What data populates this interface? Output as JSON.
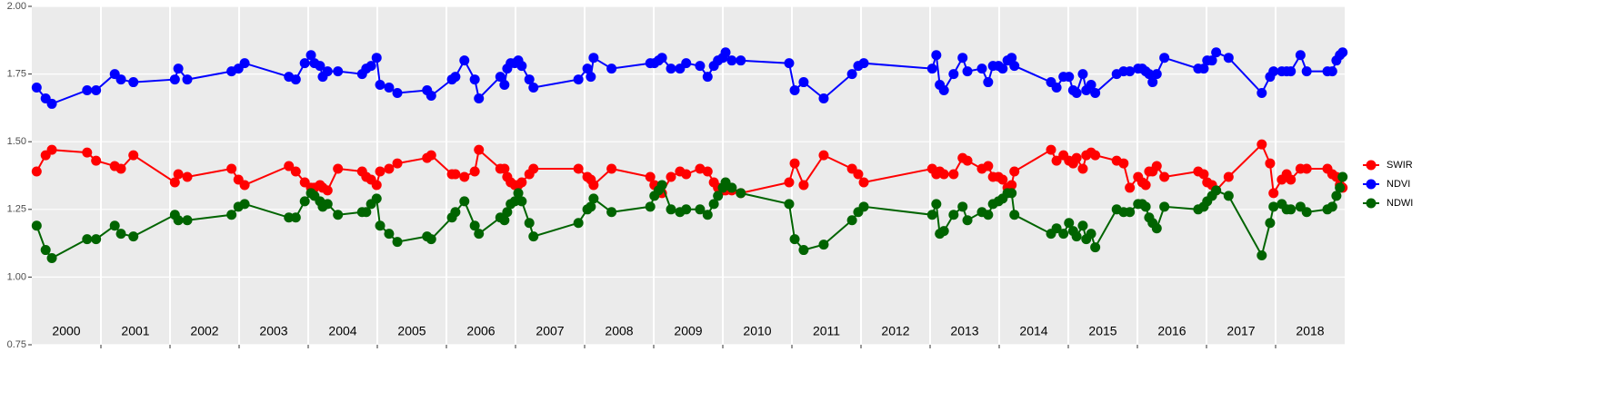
{
  "chart_data": {
    "type": "line",
    "x": [
      2000.07,
      2000.2,
      2000.29,
      2000.8,
      2000.93,
      2001.2,
      2001.29,
      2001.47,
      2002.07,
      2002.12,
      2002.25,
      2002.89,
      2002.99,
      2003.08,
      2003.72,
      2003.82,
      2003.95,
      2004.04,
      2004.09,
      2004.17,
      2004.21,
      2004.28,
      2004.43,
      2004.78,
      2004.84,
      2004.91,
      2004.99,
      2005.04,
      2005.17,
      2005.29,
      2005.72,
      2005.78,
      2006.08,
      2006.13,
      2006.26,
      2006.41,
      2006.47,
      2006.78,
      2006.84,
      2006.88,
      2006.93,
      2006.99,
      2007.04,
      2007.09,
      2007.2,
      2007.26,
      2007.91,
      2008.04,
      2008.09,
      2008.13,
      2008.39,
      2008.95,
      2009.01,
      2009.07,
      2009.12,
      2009.25,
      2009.38,
      2009.47,
      2009.67,
      2009.78,
      2009.87,
      2009.93,
      2010.0,
      2010.04,
      2010.13,
      2010.26,
      2010.96,
      2011.04,
      2011.17,
      2011.46,
      2011.87,
      2011.96,
      2012.04,
      2013.03,
      2013.09,
      2013.14,
      2013.2,
      2013.34,
      2013.47,
      2013.54,
      2013.75,
      2013.84,
      2013.91,
      2013.99,
      2014.05,
      2014.12,
      2014.18,
      2014.22,
      2014.75,
      2014.83,
      2014.93,
      2015.01,
      2015.07,
      2015.12,
      2015.21,
      2015.26,
      2015.33,
      2015.39,
      2015.7,
      2015.8,
      2015.89,
      2016.01,
      2016.07,
      2016.12,
      2016.17,
      2016.22,
      2016.28,
      2016.39,
      2016.88,
      2016.96,
      2017.01,
      2017.08,
      2017.14,
      2017.32,
      2017.8,
      2017.92,
      2017.97,
      2018.09,
      2018.16,
      2018.22,
      2018.36,
      2018.45,
      2018.75,
      2018.82,
      2018.88,
      2018.93,
      2018.97
    ],
    "series": [
      {
        "name": "SWIR",
        "color": "#ff0000",
        "values": [
          1.39,
          1.45,
          1.47,
          1.46,
          1.43,
          1.41,
          1.4,
          1.45,
          1.35,
          1.38,
          1.37,
          1.4,
          1.36,
          1.34,
          1.41,
          1.39,
          1.35,
          1.33,
          1.33,
          1.34,
          1.33,
          1.32,
          1.4,
          1.39,
          1.37,
          1.36,
          1.34,
          1.39,
          1.4,
          1.42,
          1.44,
          1.45,
          1.38,
          1.38,
          1.37,
          1.39,
          1.47,
          1.4,
          1.4,
          1.37,
          1.35,
          1.34,
          1.34,
          1.35,
          1.38,
          1.4,
          1.4,
          1.37,
          1.36,
          1.34,
          1.4,
          1.37,
          1.34,
          1.33,
          1.31,
          1.37,
          1.39,
          1.38,
          1.4,
          1.39,
          1.35,
          1.33,
          1.32,
          1.32,
          1.32,
          1.31,
          1.35,
          1.42,
          1.34,
          1.45,
          1.4,
          1.38,
          1.35,
          1.4,
          1.38,
          1.39,
          1.38,
          1.38,
          1.44,
          1.43,
          1.4,
          1.41,
          1.37,
          1.37,
          1.36,
          1.33,
          1.34,
          1.39,
          1.47,
          1.43,
          1.45,
          1.43,
          1.42,
          1.44,
          1.4,
          1.45,
          1.46,
          1.45,
          1.43,
          1.42,
          1.33,
          1.37,
          1.35,
          1.34,
          1.39,
          1.39,
          1.41,
          1.37,
          1.39,
          1.38,
          1.35,
          1.34,
          1.32,
          1.37,
          1.49,
          1.42,
          1.31,
          1.36,
          1.38,
          1.36,
          1.4,
          1.4,
          1.4,
          1.38,
          1.37,
          1.34,
          1.33
        ]
      },
      {
        "name": "NDVI",
        "color": "#0000ff",
        "values": [
          1.7,
          1.66,
          1.64,
          1.69,
          1.69,
          1.75,
          1.73,
          1.72,
          1.73,
          1.77,
          1.73,
          1.76,
          1.77,
          1.79,
          1.74,
          1.73,
          1.79,
          1.82,
          1.79,
          1.78,
          1.74,
          1.76,
          1.76,
          1.75,
          1.77,
          1.78,
          1.81,
          1.71,
          1.7,
          1.68,
          1.69,
          1.67,
          1.73,
          1.74,
          1.8,
          1.73,
          1.66,
          1.74,
          1.71,
          1.77,
          1.79,
          1.79,
          1.8,
          1.78,
          1.73,
          1.7,
          1.73,
          1.77,
          1.74,
          1.81,
          1.77,
          1.79,
          1.79,
          1.8,
          1.81,
          1.77,
          1.77,
          1.79,
          1.78,
          1.74,
          1.78,
          1.8,
          1.81,
          1.83,
          1.8,
          1.8,
          1.79,
          1.69,
          1.72,
          1.66,
          1.75,
          1.78,
          1.79,
          1.77,
          1.82,
          1.71,
          1.69,
          1.75,
          1.81,
          1.76,
          1.77,
          1.72,
          1.78,
          1.78,
          1.77,
          1.8,
          1.81,
          1.78,
          1.72,
          1.7,
          1.74,
          1.74,
          1.69,
          1.68,
          1.75,
          1.69,
          1.71,
          1.68,
          1.75,
          1.76,
          1.76,
          1.77,
          1.77,
          1.76,
          1.75,
          1.72,
          1.75,
          1.81,
          1.77,
          1.77,
          1.8,
          1.8,
          1.83,
          1.81,
          1.68,
          1.74,
          1.76,
          1.76,
          1.76,
          1.76,
          1.82,
          1.76,
          1.76,
          1.76,
          1.8,
          1.82,
          1.83
        ]
      },
      {
        "name": "NDWI",
        "color": "#006400",
        "values": [
          1.19,
          1.1,
          1.07,
          1.14,
          1.14,
          1.19,
          1.16,
          1.15,
          1.23,
          1.21,
          1.21,
          1.23,
          1.26,
          1.27,
          1.22,
          1.22,
          1.28,
          1.31,
          1.3,
          1.28,
          1.26,
          1.27,
          1.23,
          1.24,
          1.24,
          1.27,
          1.29,
          1.19,
          1.16,
          1.13,
          1.15,
          1.14,
          1.22,
          1.24,
          1.28,
          1.19,
          1.16,
          1.22,
          1.21,
          1.24,
          1.27,
          1.28,
          1.31,
          1.28,
          1.2,
          1.15,
          1.2,
          1.25,
          1.26,
          1.29,
          1.24,
          1.26,
          1.3,
          1.32,
          1.34,
          1.25,
          1.24,
          1.25,
          1.25,
          1.23,
          1.27,
          1.3,
          1.33,
          1.35,
          1.33,
          1.31,
          1.27,
          1.14,
          1.1,
          1.12,
          1.21,
          1.24,
          1.26,
          1.23,
          1.27,
          1.16,
          1.17,
          1.23,
          1.26,
          1.21,
          1.24,
          1.23,
          1.27,
          1.28,
          1.29,
          1.31,
          1.31,
          1.23,
          1.16,
          1.18,
          1.16,
          1.2,
          1.17,
          1.15,
          1.19,
          1.14,
          1.16,
          1.11,
          1.25,
          1.24,
          1.24,
          1.27,
          1.27,
          1.26,
          1.22,
          1.2,
          1.18,
          1.26,
          1.25,
          1.26,
          1.28,
          1.3,
          1.32,
          1.3,
          1.08,
          1.2,
          1.26,
          1.27,
          1.25,
          1.25,
          1.26,
          1.24,
          1.25,
          1.26,
          1.3,
          1.33,
          1.37
        ]
      }
    ],
    "xlim": [
      2000,
      2019
    ],
    "xticks": [
      {
        "value": 2000.5,
        "label": "2000"
      },
      {
        "value": 2001.5,
        "label": "2001"
      },
      {
        "value": 2002.5,
        "label": "2002"
      },
      {
        "value": 2003.5,
        "label": "2003"
      },
      {
        "value": 2004.5,
        "label": "2004"
      },
      {
        "value": 2005.5,
        "label": "2005"
      },
      {
        "value": 2006.5,
        "label": "2006"
      },
      {
        "value": 2007.5,
        "label": "2007"
      },
      {
        "value": 2008.5,
        "label": "2008"
      },
      {
        "value": 2009.5,
        "label": "2009"
      },
      {
        "value": 2010.5,
        "label": "2010"
      },
      {
        "value": 2011.5,
        "label": "2011"
      },
      {
        "value": 2012.5,
        "label": "2012"
      },
      {
        "value": 2013.5,
        "label": "2013"
      },
      {
        "value": 2014.5,
        "label": "2014"
      },
      {
        "value": 2015.5,
        "label": "2015"
      },
      {
        "value": 2016.5,
        "label": "2016"
      },
      {
        "value": 2017.5,
        "label": "2017"
      },
      {
        "value": 2018.5,
        "label": "2018"
      }
    ],
    "xgrid": [
      2001,
      2002,
      2003,
      2004,
      2005,
      2006,
      2007,
      2008,
      2009,
      2010,
      2011,
      2012,
      2013,
      2014,
      2015,
      2016,
      2017,
      2018
    ],
    "ylim": [
      0.75,
      2.0
    ],
    "yticks": [
      {
        "value": 0.75,
        "label": "0.75"
      },
      {
        "value": 1,
        "label": "1.00"
      },
      {
        "value": 1.25,
        "label": "1.25"
      },
      {
        "value": 1.5,
        "label": "1.50"
      },
      {
        "value": 1.75,
        "label": "1.75"
      },
      {
        "value": 2,
        "label": "2.00"
      }
    ],
    "grid": true,
    "legend": "right"
  }
}
